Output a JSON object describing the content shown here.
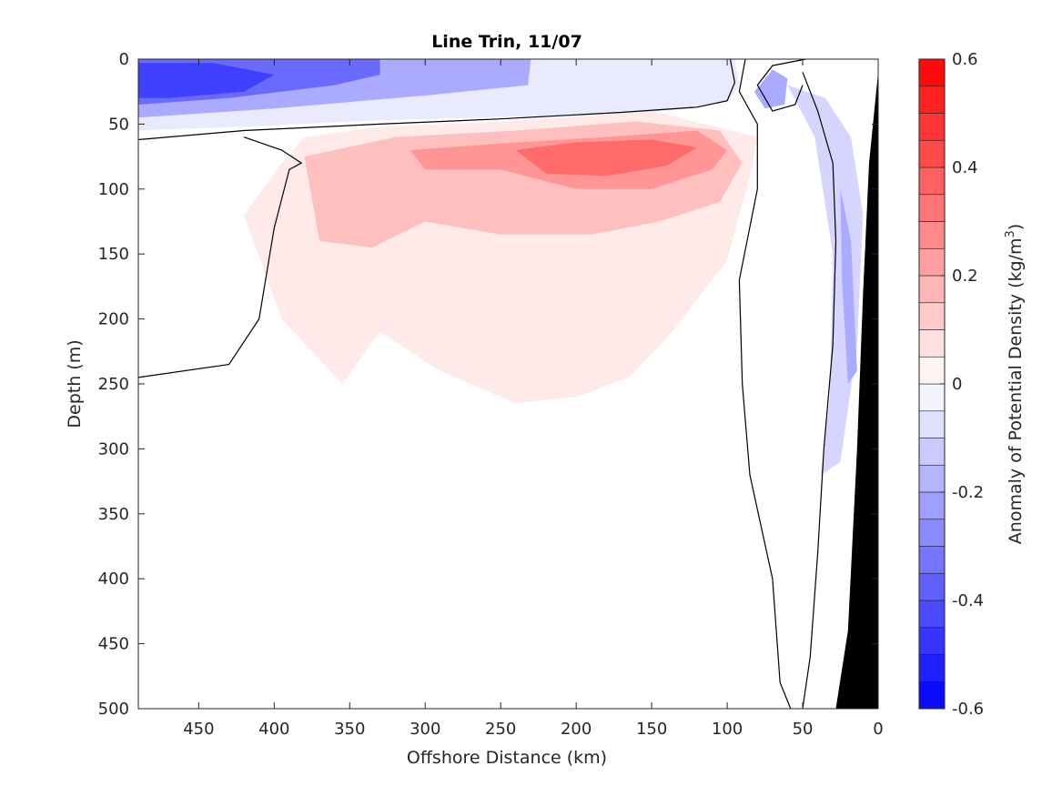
{
  "chart_data": {
    "type": "heatmap",
    "subtype": "filled-contour",
    "title": "Line Trin, 11/07",
    "xlabel": "Offshore Distance (km)",
    "ylabel": "Depth (m)",
    "xlim": [
      490,
      0
    ],
    "ylim": [
      0,
      500
    ],
    "x_reversed": true,
    "y_reversed": true,
    "x_ticks": [
      450,
      400,
      350,
      300,
      250,
      200,
      150,
      100,
      50,
      0
    ],
    "y_ticks": [
      0,
      50,
      100,
      150,
      200,
      250,
      300,
      350,
      400,
      450,
      500
    ],
    "colorbar": {
      "label_main": "Anomaly of Potential Density (kg/m",
      "label_sup": "3",
      "label_close": ")",
      "range": [
        -0.6,
        0.6
      ],
      "step": 0.05,
      "ticks": [
        0.6,
        0.4,
        0.2,
        0,
        -0.2,
        -0.4,
        -0.6
      ],
      "tick_labels": [
        "0.6",
        "0.4",
        "0.2",
        "0",
        "-0.2",
        "-0.4",
        "-0.6"
      ],
      "negative_color": "#0000ff",
      "positive_color": "#ff0000",
      "zero_color": "#ffffff"
    },
    "bathymetry_color": "#000000",
    "bathymetry": [
      [
        28,
        500
      ],
      [
        20,
        440
      ],
      [
        14,
        300
      ],
      [
        10,
        180
      ],
      [
        6,
        80
      ],
      [
        0,
        10
      ]
    ],
    "fields": [
      {
        "name": "surface-negative-1",
        "points": [
          [
            490,
            0
          ],
          [
            95,
            0
          ],
          [
            92,
            20
          ],
          [
            100,
            33
          ],
          [
            140,
            40
          ],
          [
            230,
            44
          ],
          [
            330,
            47
          ],
          [
            420,
            52
          ],
          [
            490,
            55
          ]
        ],
        "value": -0.05
      },
      {
        "name": "surface-negative-2",
        "points": [
          [
            490,
            0
          ],
          [
            230,
            0
          ],
          [
            232,
            20
          ],
          [
            300,
            28
          ],
          [
            400,
            38
          ],
          [
            490,
            45
          ]
        ],
        "value": -0.2
      },
      {
        "name": "surface-negative-3",
        "points": [
          [
            490,
            0
          ],
          [
            330,
            0
          ],
          [
            330,
            12
          ],
          [
            360,
            20
          ],
          [
            430,
            30
          ],
          [
            490,
            35
          ]
        ],
        "value": -0.35
      },
      {
        "name": "surface-negative-4",
        "points": [
          [
            490,
            3
          ],
          [
            440,
            3
          ],
          [
            400,
            12
          ],
          [
            420,
            25
          ],
          [
            470,
            30
          ],
          [
            490,
            30
          ]
        ],
        "value": -0.45
      },
      {
        "name": "inner-shelf-negative",
        "points": [
          [
            60,
            20
          ],
          [
            42,
            60
          ],
          [
            30,
            150
          ],
          [
            32,
            260
          ],
          [
            38,
            320
          ],
          [
            25,
            310
          ],
          [
            14,
            220
          ],
          [
            10,
            120
          ],
          [
            18,
            60
          ],
          [
            35,
            30
          ]
        ],
        "value": -0.1
      },
      {
        "name": "inner-shelf-negative-core",
        "points": [
          [
            25,
            100
          ],
          [
            18,
            140
          ],
          [
            14,
            240
          ],
          [
            20,
            250
          ],
          [
            24,
            170
          ]
        ],
        "value": -0.2
      },
      {
        "name": "nearshore-eddy",
        "points": [
          [
            70,
            8
          ],
          [
            60,
            15
          ],
          [
            62,
            35
          ],
          [
            75,
            38
          ],
          [
            82,
            25
          ]
        ],
        "value": -0.2
      },
      {
        "name": "subsurface-positive-1",
        "points": [
          [
            395,
            80
          ],
          [
            420,
            120
          ],
          [
            395,
            200
          ],
          [
            355,
            250
          ],
          [
            330,
            210
          ],
          [
            290,
            240
          ],
          [
            240,
            265
          ],
          [
            200,
            260
          ],
          [
            165,
            245
          ],
          [
            140,
            215
          ],
          [
            100,
            155
          ],
          [
            85,
            90
          ],
          [
            80,
            60
          ],
          [
            150,
            40
          ],
          [
            250,
            48
          ],
          [
            330,
            52
          ],
          [
            380,
            60
          ]
        ],
        "value": 0.05
      },
      {
        "name": "subsurface-positive-2",
        "points": [
          [
            380,
            75
          ],
          [
            370,
            140
          ],
          [
            335,
            145
          ],
          [
            300,
            125
          ],
          [
            250,
            135
          ],
          [
            190,
            135
          ],
          [
            145,
            125
          ],
          [
            105,
            110
          ],
          [
            90,
            80
          ],
          [
            105,
            55
          ],
          [
            160,
            48
          ],
          [
            240,
            55
          ],
          [
            320,
            60
          ]
        ],
        "value": 0.15
      },
      {
        "name": "subsurface-positive-3",
        "points": [
          [
            310,
            70
          ],
          [
            300,
            85
          ],
          [
            250,
            85
          ],
          [
            200,
            100
          ],
          [
            150,
            100
          ],
          [
            110,
            85
          ],
          [
            100,
            70
          ],
          [
            120,
            55
          ],
          [
            180,
            60
          ],
          [
            250,
            65
          ]
        ],
        "value": 0.25
      },
      {
        "name": "subsurface-positive-core",
        "points": [
          [
            240,
            70
          ],
          [
            220,
            88
          ],
          [
            180,
            90
          ],
          [
            140,
            82
          ],
          [
            120,
            68
          ],
          [
            150,
            62
          ],
          [
            200,
            64
          ]
        ],
        "value": 0.35
      }
    ],
    "zero_contours": [
      [
        [
          490,
          62
        ],
        [
          420,
          55
        ],
        [
          330,
          50
        ],
        [
          250,
          46
        ],
        [
          170,
          41
        ],
        [
          120,
          37
        ],
        [
          100,
          32
        ],
        [
          95,
          18
        ],
        [
          98,
          0
        ]
      ],
      [
        [
          490,
          245
        ],
        [
          430,
          235
        ],
        [
          410,
          200
        ],
        [
          400,
          130
        ],
        [
          390,
          85
        ],
        [
          382,
          80
        ],
        [
          395,
          70
        ],
        [
          420,
          60
        ]
      ],
      [
        [
          88,
          0
        ],
        [
          92,
          25
        ],
        [
          80,
          50
        ],
        [
          80,
          100
        ],
        [
          92,
          170
        ],
        [
          90,
          250
        ],
        [
          85,
          320
        ],
        [
          70,
          400
        ],
        [
          65,
          480
        ],
        [
          58,
          500
        ]
      ],
      [
        [
          48,
          0
        ],
        [
          70,
          5
        ],
        [
          80,
          20
        ],
        [
          70,
          40
        ],
        [
          55,
          35
        ],
        [
          50,
          20
        ]
      ],
      [
        [
          50,
          500
        ],
        [
          45,
          460
        ],
        [
          40,
          380
        ],
        [
          36,
          300
        ],
        [
          30,
          220
        ],
        [
          28,
          140
        ],
        [
          30,
          80
        ],
        [
          40,
          40
        ],
        [
          50,
          10
        ]
      ]
    ]
  }
}
